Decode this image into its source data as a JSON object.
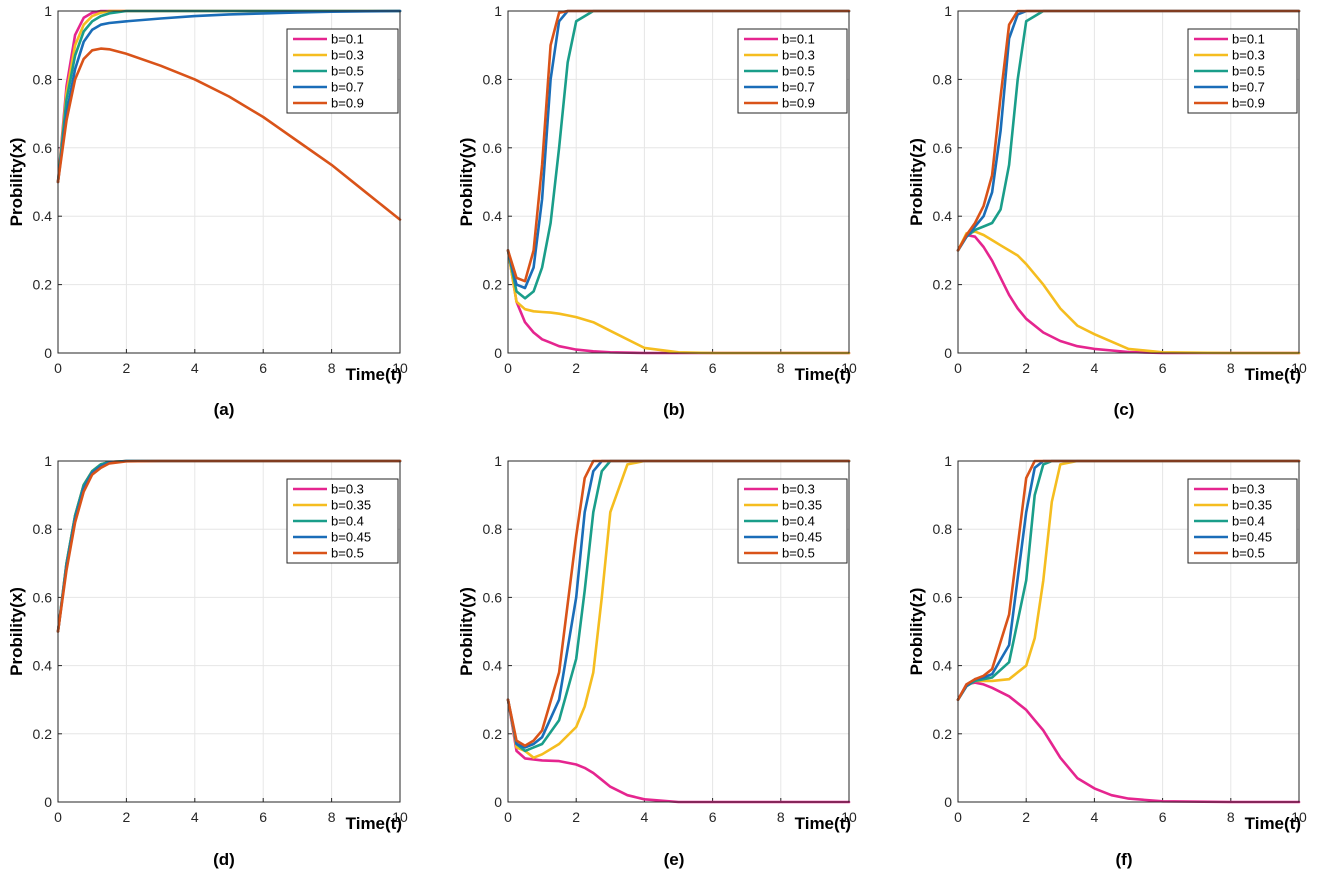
{
  "chart_data": [
    {
      "type": "line",
      "caption": "(a)",
      "ylabel": "Probility(x)",
      "xlabel": "Time(t)",
      "xlim": [
        0,
        10
      ],
      "ylim": [
        0,
        1
      ],
      "xticks": [
        "0",
        "2",
        "4",
        "6",
        "8",
        "10"
      ],
      "yticks": [
        "0",
        "0.2",
        "0.4",
        "0.6",
        "0.8",
        "1"
      ],
      "x": [
        0,
        0.25,
        0.5,
        0.75,
        1,
        1.25,
        1.5,
        2,
        3,
        4,
        5,
        6,
        7,
        8,
        9,
        10
      ],
      "series": [
        {
          "name": "b=0.1",
          "color": "#E5258F",
          "values": [
            0.5,
            0.78,
            0.93,
            0.98,
            0.995,
            1,
            1,
            1,
            1,
            1,
            1,
            1,
            1,
            1,
            1,
            1
          ]
        },
        {
          "name": "b=0.3",
          "color": "#F5BD1F",
          "values": [
            0.5,
            0.76,
            0.9,
            0.96,
            0.985,
            0.995,
            1,
            1,
            1,
            1,
            1,
            1,
            1,
            1,
            1,
            1
          ]
        },
        {
          "name": "b=0.5",
          "color": "#1A9E8A",
          "values": [
            0.5,
            0.74,
            0.87,
            0.94,
            0.97,
            0.985,
            0.993,
            1,
            1,
            1,
            1,
            1,
            1,
            1,
            1,
            1
          ]
        },
        {
          "name": "b=0.7",
          "color": "#1A6DB8",
          "values": [
            0.5,
            0.7,
            0.83,
            0.91,
            0.945,
            0.96,
            0.965,
            0.97,
            0.978,
            0.985,
            0.99,
            0.993,
            0.996,
            0.998,
            0.999,
            1
          ]
        },
        {
          "name": "b=0.9",
          "color": "#D95319",
          "values": [
            0.5,
            0.68,
            0.8,
            0.86,
            0.885,
            0.89,
            0.888,
            0.875,
            0.84,
            0.8,
            0.75,
            0.69,
            0.62,
            0.55,
            0.47,
            0.39
          ]
        }
      ]
    },
    {
      "type": "line",
      "caption": "(b)",
      "ylabel": "Probility(y)",
      "xlabel": "Time(t)",
      "xlim": [
        0,
        10
      ],
      "ylim": [
        0,
        1
      ],
      "xticks": [
        "0",
        "2",
        "4",
        "6",
        "8",
        "10"
      ],
      "yticks": [
        "0",
        "0.2",
        "0.4",
        "0.6",
        "0.8",
        "1"
      ],
      "x": [
        0,
        0.25,
        0.5,
        0.75,
        1,
        1.25,
        1.5,
        1.75,
        2,
        2.5,
        3,
        4,
        5,
        6,
        8,
        10
      ],
      "series": [
        {
          "name": "b=0.1",
          "color": "#E5258F",
          "values": [
            0.3,
            0.15,
            0.09,
            0.06,
            0.04,
            0.03,
            0.02,
            0.015,
            0.01,
            0.005,
            0.002,
            0,
            0,
            0,
            0,
            0
          ]
        },
        {
          "name": "b=0.3",
          "color": "#F5BD1F",
          "values": [
            0.3,
            0.15,
            0.128,
            0.122,
            0.12,
            0.118,
            0.115,
            0.11,
            0.105,
            0.09,
            0.065,
            0.015,
            0.002,
            0,
            0,
            0
          ]
        },
        {
          "name": "b=0.5",
          "color": "#1A9E8A",
          "values": [
            0.3,
            0.18,
            0.16,
            0.18,
            0.25,
            0.38,
            0.6,
            0.85,
            0.97,
            1,
            1,
            1,
            1,
            1,
            1,
            1
          ]
        },
        {
          "name": "b=0.7",
          "color": "#1A6DB8",
          "values": [
            0.3,
            0.2,
            0.19,
            0.25,
            0.45,
            0.8,
            0.97,
            1,
            1,
            1,
            1,
            1,
            1,
            1,
            1,
            1
          ]
        },
        {
          "name": "b=0.9",
          "color": "#D95319",
          "values": [
            0.3,
            0.22,
            0.21,
            0.3,
            0.55,
            0.9,
            0.995,
            1,
            1,
            1,
            1,
            1,
            1,
            1,
            1,
            1
          ]
        }
      ]
    },
    {
      "type": "line",
      "caption": "(c)",
      "ylabel": "Probility(z)",
      "xlabel": "Time(t)",
      "xlim": [
        0,
        10
      ],
      "ylim": [
        0,
        1
      ],
      "xticks": [
        "0",
        "2",
        "4",
        "6",
        "8",
        "10"
      ],
      "yticks": [
        "0",
        "0.2",
        "0.4",
        "0.6",
        "0.8",
        "1"
      ],
      "x": [
        0,
        0.25,
        0.5,
        0.75,
        1,
        1.25,
        1.5,
        1.75,
        2,
        2.5,
        3,
        3.5,
        4,
        5,
        6,
        8,
        10
      ],
      "series": [
        {
          "name": "b=0.1",
          "color": "#E5258F",
          "values": [
            0.3,
            0.345,
            0.34,
            0.31,
            0.27,
            0.22,
            0.17,
            0.13,
            0.1,
            0.06,
            0.035,
            0.02,
            0.012,
            0.003,
            0,
            0,
            0
          ]
        },
        {
          "name": "b=0.3",
          "color": "#F5BD1F",
          "values": [
            0.3,
            0.35,
            0.355,
            0.345,
            0.33,
            0.315,
            0.3,
            0.285,
            0.26,
            0.2,
            0.13,
            0.08,
            0.055,
            0.012,
            0.002,
            0,
            0
          ]
        },
        {
          "name": "b=0.5",
          "color": "#1A9E8A",
          "values": [
            0.3,
            0.34,
            0.36,
            0.37,
            0.38,
            0.42,
            0.55,
            0.8,
            0.97,
            1,
            1,
            1,
            1,
            1,
            1,
            1,
            1
          ]
        },
        {
          "name": "b=0.7",
          "color": "#1A6DB8",
          "values": [
            0.3,
            0.34,
            0.37,
            0.4,
            0.47,
            0.65,
            0.92,
            0.99,
            1,
            1,
            1,
            1,
            1,
            1,
            1,
            1,
            1
          ]
        },
        {
          "name": "b=0.9",
          "color": "#D95319",
          "values": [
            0.3,
            0.345,
            0.38,
            0.43,
            0.52,
            0.75,
            0.96,
            1,
            1,
            1,
            1,
            1,
            1,
            1,
            1,
            1,
            1
          ]
        }
      ]
    },
    {
      "type": "line",
      "caption": "(d)",
      "ylabel": "Probility(x)",
      "xlabel": "Time(t)",
      "xlim": [
        0,
        10
      ],
      "ylim": [
        0,
        1
      ],
      "xticks": [
        "0",
        "2",
        "4",
        "6",
        "8",
        "10"
      ],
      "yticks": [
        "0",
        "0.2",
        "0.4",
        "0.6",
        "0.8",
        "1"
      ],
      "x": [
        0,
        0.25,
        0.5,
        0.75,
        1,
        1.25,
        1.5,
        2,
        3,
        5,
        10
      ],
      "series": [
        {
          "name": "b=0.3",
          "color": "#E5258F",
          "values": [
            0.5,
            0.7,
            0.84,
            0.93,
            0.97,
            0.99,
            0.997,
            1,
            1,
            1,
            1
          ]
        },
        {
          "name": "b=0.35",
          "color": "#F5BD1F",
          "values": [
            0.5,
            0.7,
            0.84,
            0.93,
            0.97,
            0.99,
            0.997,
            1,
            1,
            1,
            1
          ]
        },
        {
          "name": "b=0.4",
          "color": "#1A9E8A",
          "values": [
            0.5,
            0.7,
            0.84,
            0.93,
            0.97,
            0.99,
            0.997,
            1,
            1,
            1,
            1
          ]
        },
        {
          "name": "b=0.45",
          "color": "#1A6DB8",
          "values": [
            0.5,
            0.69,
            0.83,
            0.92,
            0.965,
            0.985,
            0.995,
            1,
            1,
            1,
            1
          ]
        },
        {
          "name": "b=0.5",
          "color": "#D95319",
          "values": [
            0.5,
            0.68,
            0.82,
            0.91,
            0.96,
            0.98,
            0.993,
            0.999,
            1,
            1,
            1
          ]
        }
      ]
    },
    {
      "type": "line",
      "caption": "(e)",
      "ylabel": "Probility(y)",
      "xlabel": "Time(t)",
      "xlim": [
        0,
        10
      ],
      "ylim": [
        0,
        1
      ],
      "xticks": [
        "0",
        "2",
        "4",
        "6",
        "8",
        "10"
      ],
      "yticks": [
        "0",
        "0.2",
        "0.4",
        "0.6",
        "0.8",
        "1"
      ],
      "x": [
        0,
        0.25,
        0.5,
        0.75,
        1,
        1.5,
        2,
        2.25,
        2.5,
        2.75,
        3,
        3.5,
        4,
        5,
        6,
        8,
        10
      ],
      "series": [
        {
          "name": "b=0.3",
          "color": "#E5258F",
          "values": [
            0.3,
            0.15,
            0.128,
            0.125,
            0.122,
            0.12,
            0.11,
            0.1,
            0.085,
            0.065,
            0.045,
            0.02,
            0.008,
            0,
            0,
            0,
            0
          ]
        },
        {
          "name": "b=0.35",
          "color": "#F5BD1F",
          "values": [
            0.3,
            0.16,
            0.15,
            0.13,
            0.14,
            0.17,
            0.22,
            0.28,
            0.38,
            0.6,
            0.85,
            0.99,
            1,
            1,
            1,
            1,
            1
          ]
        },
        {
          "name": "b=0.4",
          "color": "#1A9E8A",
          "values": [
            0.3,
            0.17,
            0.15,
            0.16,
            0.17,
            0.24,
            0.42,
            0.62,
            0.85,
            0.97,
            1,
            1,
            1,
            1,
            1,
            1,
            1
          ]
        },
        {
          "name": "b=0.45",
          "color": "#1A6DB8",
          "values": [
            0.3,
            0.17,
            0.16,
            0.17,
            0.19,
            0.3,
            0.6,
            0.85,
            0.97,
            1,
            1,
            1,
            1,
            1,
            1,
            1,
            1
          ]
        },
        {
          "name": "b=0.5",
          "color": "#D95319",
          "values": [
            0.3,
            0.18,
            0.165,
            0.18,
            0.21,
            0.38,
            0.78,
            0.95,
            1,
            1,
            1,
            1,
            1,
            1,
            1,
            1,
            1
          ]
        }
      ]
    },
    {
      "type": "line",
      "caption": "(f)",
      "ylabel": "Probility(z)",
      "xlabel": "Time(t)",
      "xlim": [
        0,
        10
      ],
      "ylim": [
        0,
        1
      ],
      "xticks": [
        "0",
        "2",
        "4",
        "6",
        "8",
        "10"
      ],
      "yticks": [
        "0",
        "0.2",
        "0.4",
        "0.6",
        "0.8",
        "1"
      ],
      "x": [
        0,
        0.25,
        0.5,
        0.75,
        1,
        1.5,
        2,
        2.25,
        2.5,
        2.75,
        3,
        3.5,
        4,
        4.5,
        5,
        6,
        8,
        10
      ],
      "series": [
        {
          "name": "b=0.3",
          "color": "#E5258F",
          "values": [
            0.3,
            0.345,
            0.35,
            0.345,
            0.335,
            0.31,
            0.27,
            0.24,
            0.21,
            0.17,
            0.13,
            0.07,
            0.04,
            0.02,
            0.01,
            0.002,
            0,
            0
          ]
        },
        {
          "name": "b=0.35",
          "color": "#F5BD1F",
          "values": [
            0.3,
            0.34,
            0.355,
            0.355,
            0.355,
            0.36,
            0.4,
            0.48,
            0.65,
            0.88,
            0.99,
            1,
            1,
            1,
            1,
            1,
            1,
            1
          ]
        },
        {
          "name": "b=0.4",
          "color": "#1A9E8A",
          "values": [
            0.3,
            0.34,
            0.355,
            0.36,
            0.365,
            0.41,
            0.65,
            0.9,
            0.99,
            1,
            1,
            1,
            1,
            1,
            1,
            1,
            1,
            1
          ]
        },
        {
          "name": "b=0.45",
          "color": "#1A6DB8",
          "values": [
            0.3,
            0.34,
            0.36,
            0.365,
            0.375,
            0.46,
            0.85,
            0.98,
            1,
            1,
            1,
            1,
            1,
            1,
            1,
            1,
            1,
            1
          ]
        },
        {
          "name": "b=0.5",
          "color": "#D95319",
          "values": [
            0.3,
            0.345,
            0.36,
            0.37,
            0.39,
            0.55,
            0.95,
            1,
            1,
            1,
            1,
            1,
            1,
            1,
            1,
            1,
            1,
            1
          ]
        }
      ]
    }
  ]
}
